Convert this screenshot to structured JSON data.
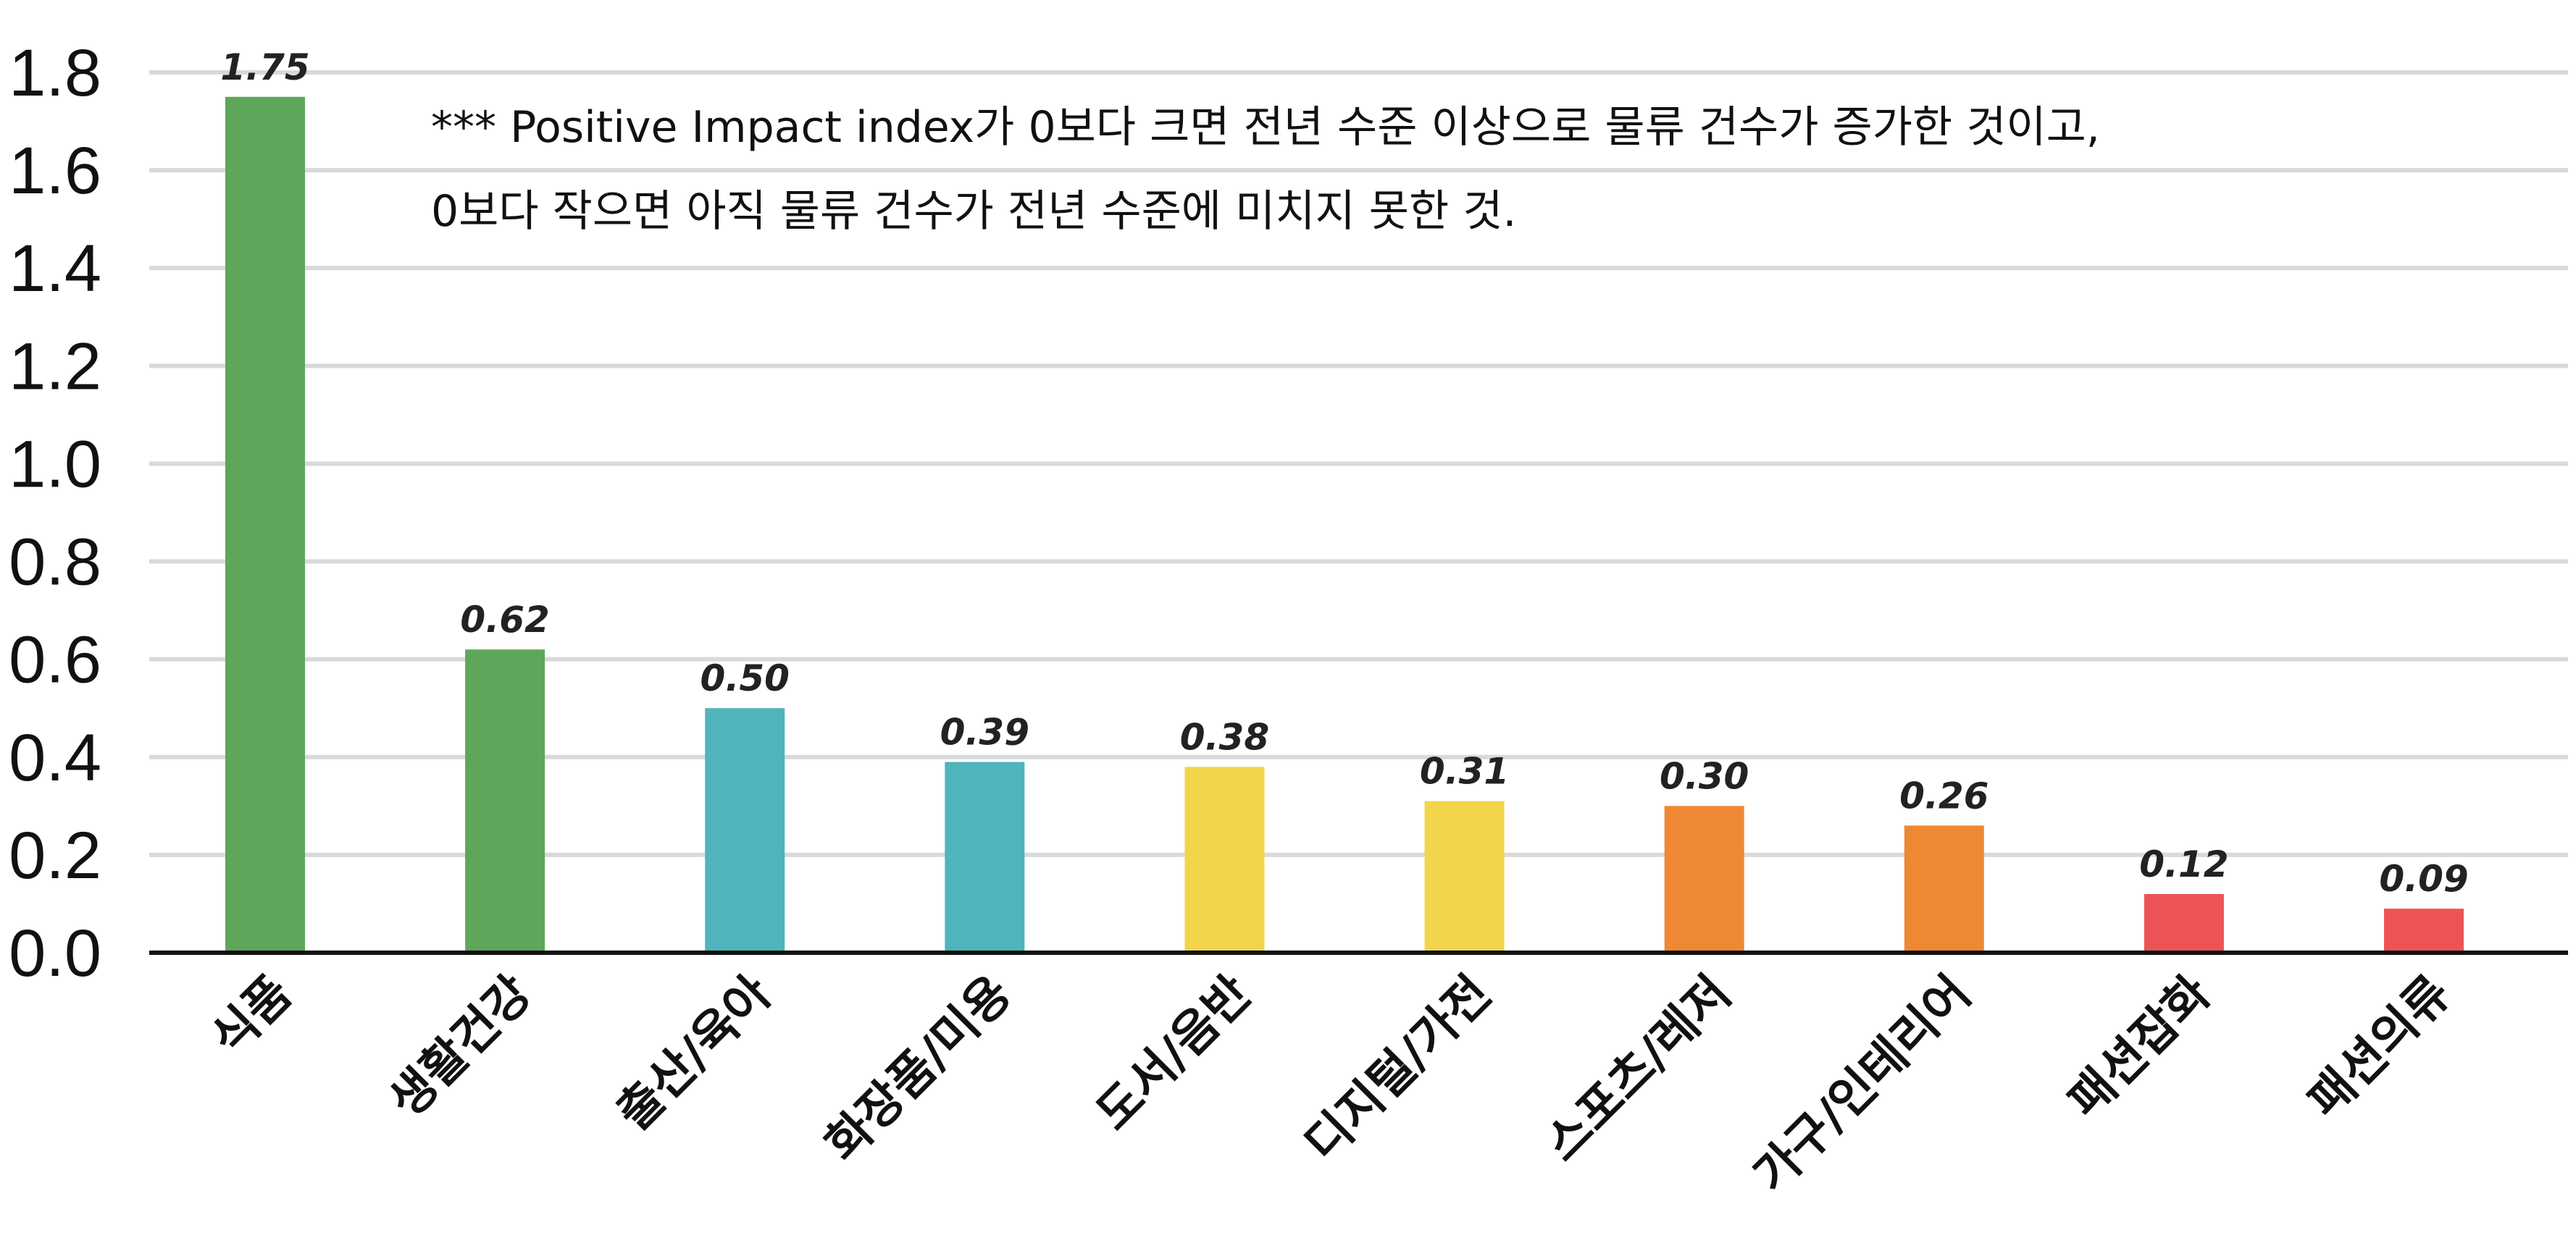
{
  "chart_data": {
    "type": "bar",
    "categories": [
      "식품",
      "생활건강",
      "출산/육아",
      "화장품/미용",
      "도서/음반",
      "디지털/가전",
      "스포츠/레저",
      "가구/인테리어",
      "패션잡화",
      "패션의류"
    ],
    "values": [
      1.75,
      0.62,
      0.5,
      0.39,
      0.38,
      0.31,
      0.3,
      0.26,
      0.12,
      0.09
    ],
    "data_labels": [
      "1.75",
      "0.62",
      "0.50",
      "0.39",
      "0.38",
      "0.31",
      "0.30",
      "0.26",
      "0.12",
      "0.09"
    ],
    "bar_colors": [
      "#5ea65a",
      "#5ea65a",
      "#4fb4bb",
      "#4fb4bb",
      "#f2d54a",
      "#f2d54a",
      "#ee8833",
      "#ee8833",
      "#ec5355",
      "#ec5355"
    ],
    "ylim": [
      0,
      1.8
    ],
    "yticks": [
      "0.0",
      "0.2",
      "0.4",
      "0.6",
      "0.8",
      "1.0",
      "1.2",
      "1.4",
      "1.6",
      "1.8"
    ],
    "grid": true,
    "title": "",
    "xlabel": "",
    "ylabel": "",
    "annotation_lines": [
      "*** Positive Impact index가 0보다 크면 전년 수준 이상으로 물류 건수가 증가한 것이고,",
      "0보다 작으면 아직 물류 건수가 전년 수준에 미치지 못한 것."
    ]
  },
  "colors": {
    "grid": "#d9d9d9",
    "axis": "#111111"
  }
}
